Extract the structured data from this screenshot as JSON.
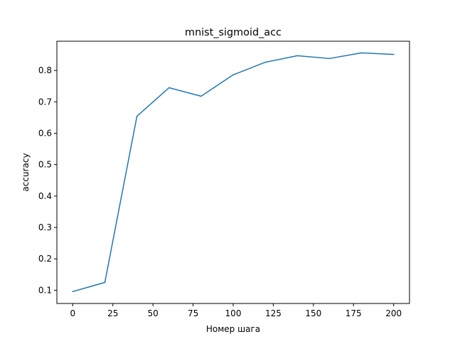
{
  "chart_data": {
    "type": "line",
    "title": "mnist_sigmoid_acc",
    "xlabel": "Номер шага",
    "ylabel": "accuracy",
    "xlim": [
      -9.9,
      209.9
    ],
    "ylim": [
      0.058,
      0.893
    ],
    "x_ticks": [
      0,
      25,
      50,
      75,
      100,
      125,
      150,
      175,
      200
    ],
    "y_ticks": [
      0.1,
      0.2,
      0.3,
      0.4,
      0.5,
      0.6,
      0.7,
      0.8
    ],
    "x_tick_labels": [
      "0",
      "25",
      "50",
      "75",
      "100",
      "125",
      "150",
      "175",
      "200"
    ],
    "y_tick_labels": [
      "0.1",
      "0.2",
      "0.3",
      "0.4",
      "0.5",
      "0.6",
      "0.7",
      "0.8"
    ],
    "grid": false,
    "series": [
      {
        "color": "#1f77b4",
        "x": [
          0,
          20,
          40,
          60,
          80,
          100,
          120,
          140,
          160,
          180,
          200
        ],
        "y": [
          0.096,
          0.125,
          0.654,
          0.745,
          0.718,
          0.786,
          0.826,
          0.847,
          0.838,
          0.856,
          0.851
        ]
      }
    ]
  }
}
